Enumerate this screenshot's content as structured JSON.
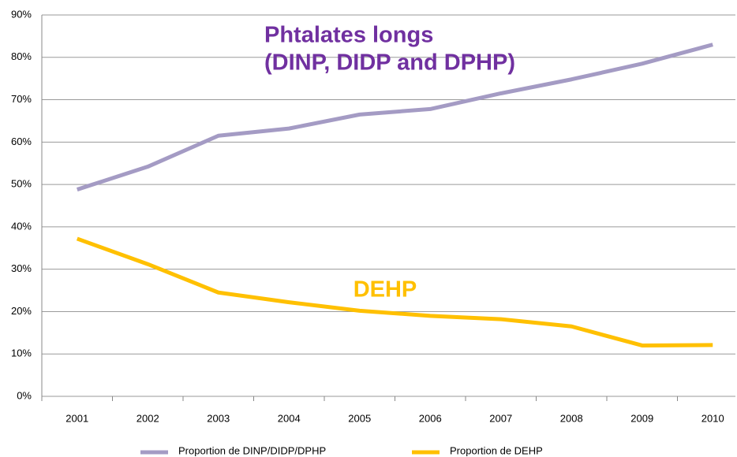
{
  "chart_data": {
    "type": "line",
    "categories": [
      "2001",
      "2002",
      "2003",
      "2004",
      "2005",
      "2006",
      "2007",
      "2008",
      "2009",
      "2010"
    ],
    "series": [
      {
        "name": "Proportion de DINP/DIDP/DPHP",
        "color": "#a49bc4",
        "values": [
          48.8,
          54.2,
          61.5,
          63.2,
          66.5,
          67.8,
          71.5,
          74.8,
          78.5,
          83
        ]
      },
      {
        "name": "Proportion de DEHP",
        "color": "#ffc000",
        "values": [
          37.2,
          31.2,
          24.5,
          22.2,
          20.2,
          19,
          18.2,
          16.5,
          12,
          12.1
        ]
      }
    ],
    "ylim": [
      0,
      90
    ],
    "yticks": [
      {
        "value": 0,
        "label": "0%"
      },
      {
        "value": 10,
        "label": "10%"
      },
      {
        "value": 20,
        "label": "20%"
      },
      {
        "value": 30,
        "label": "30%"
      },
      {
        "value": 40,
        "label": "40%"
      },
      {
        "value": 50,
        "label": "50%"
      },
      {
        "value": 60,
        "label": "60%"
      },
      {
        "value": 70,
        "label": "70%"
      },
      {
        "value": 80,
        "label": "80%"
      },
      {
        "value": 90,
        "label": "90%"
      }
    ],
    "grid": true,
    "legend": "bottom",
    "annotations": [
      {
        "text": "Phtalates longs",
        "color": "#7030a0"
      },
      {
        "text": "(DINP, DIDP and DPHP)",
        "color": "#7030a0"
      },
      {
        "text": "DEHP",
        "color": "#ffc000"
      }
    ]
  }
}
